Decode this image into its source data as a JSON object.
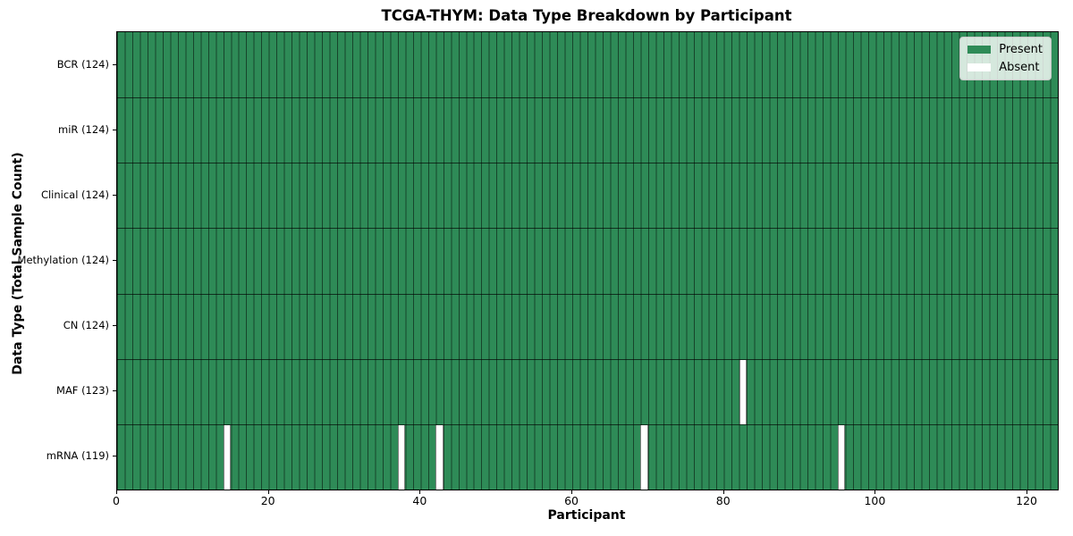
{
  "chart_data": {
    "type": "heatmap",
    "title": "TCGA-THYM: Data Type Breakdown by Participant",
    "xlabel": "Participant",
    "ylabel": "Data Type (Total Sample Count)",
    "x_ticks": [
      0,
      20,
      40,
      60,
      80,
      100,
      120
    ],
    "x_range": [
      0,
      124
    ],
    "n_participants": 124,
    "rows": [
      {
        "name": "BCR",
        "label": "BCR (124)",
        "total": 124,
        "absent": []
      },
      {
        "name": "miR",
        "label": "miR (124)",
        "total": 124,
        "absent": []
      },
      {
        "name": "Clinical",
        "label": "Clinical (124)",
        "total": 124,
        "absent": []
      },
      {
        "name": "Methylation",
        "label": "Methylation (124)",
        "total": 124,
        "absent": []
      },
      {
        "name": "CN",
        "label": "CN (124)",
        "total": 124,
        "absent": []
      },
      {
        "name": "MAF",
        "label": "MAF (123)",
        "total": 123,
        "absent": [
          82
        ]
      },
      {
        "name": "mRNA",
        "label": "mRNA (119)",
        "total": 119,
        "absent": [
          14,
          37,
          42,
          69,
          95
        ]
      }
    ],
    "legend": {
      "position": "upper right",
      "entries": [
        {
          "label": "Present",
          "color": "#2e8b57"
        },
        {
          "label": "Absent",
          "color": "#ffffff"
        }
      ]
    },
    "colors": {
      "present": "#2e8b57",
      "absent": "#ffffff",
      "cell_edge": "rgba(0,0,0,0.5)",
      "row_separator": "rgba(0,0,0,0.65)",
      "axis_border": "#000000"
    }
  }
}
